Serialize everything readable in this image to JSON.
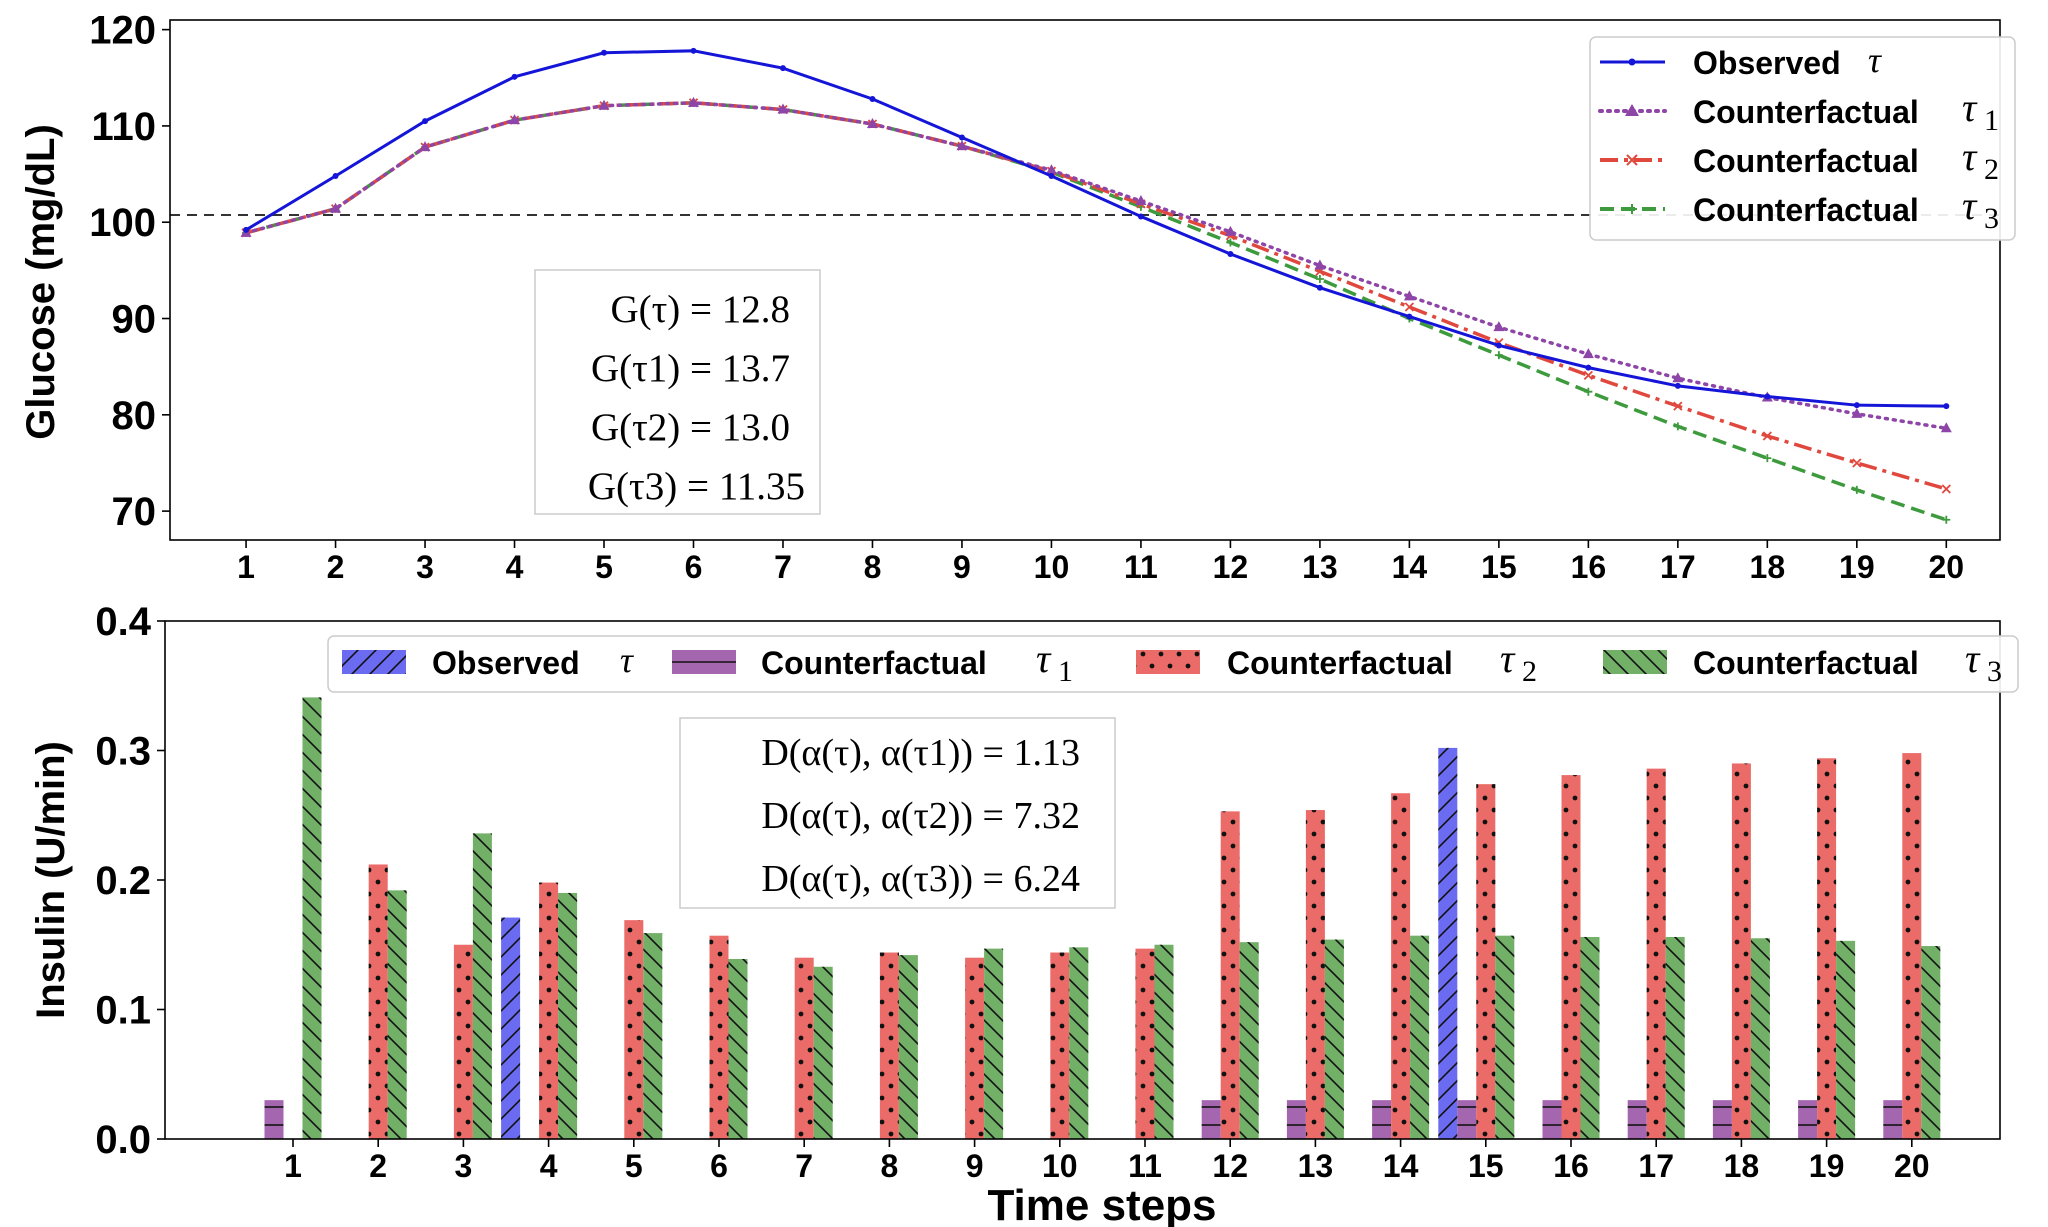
{
  "chart_data": [
    {
      "type": "line",
      "ylabel": "Glucose (mg/dL)",
      "xlabel": "",
      "x": [
        1,
        2,
        3,
        4,
        5,
        6,
        7,
        8,
        9,
        10,
        11,
        12,
        13,
        14,
        15,
        16,
        17,
        18,
        19,
        20
      ],
      "ylim": [
        67,
        121
      ],
      "xlim": [
        0.15,
        20.6
      ],
      "yticks": [
        70,
        80,
        90,
        100,
        110,
        120
      ],
      "reference_line": 100,
      "series": [
        {
          "name": "Observed",
          "tau": "τ",
          "color": "#1515d8",
          "style": "solid",
          "values": [
            99.2,
            104.8,
            110.5,
            115.1,
            117.6,
            117.8,
            116.0,
            112.8,
            108.8,
            104.8,
            100.6,
            96.7,
            93.2,
            90.2,
            87.2,
            84.9,
            83.0,
            81.9,
            81.0,
            80.9
          ]
        },
        {
          "name": "Counterfactual",
          "tau": "τ",
          "sub": "1",
          "color": "#8e45a8",
          "style": "dotted",
          "values": [
            98.9,
            101.4,
            107.8,
            110.6,
            112.1,
            112.4,
            111.7,
            110.2,
            107.9,
            105.4,
            102.2,
            99.0,
            95.5,
            92.3,
            89.1,
            86.3,
            83.8,
            81.8,
            80.1,
            78.6
          ]
        },
        {
          "name": "Counterfactual",
          "tau": "τ",
          "sub": "2",
          "color": "#e0483e",
          "style": "dashdot",
          "values": [
            98.9,
            101.4,
            107.8,
            110.6,
            112.1,
            112.4,
            111.7,
            110.2,
            107.9,
            105.3,
            101.9,
            98.6,
            94.9,
            91.2,
            87.5,
            84.1,
            80.9,
            77.8,
            75.0,
            72.3
          ]
        },
        {
          "name": "Counterfactual",
          "tau": "τ",
          "sub": "3",
          "color": "#3d9a3d",
          "style": "dashed",
          "values": [
            98.9,
            101.4,
            107.8,
            110.6,
            112.1,
            112.4,
            111.7,
            110.2,
            107.9,
            105.2,
            101.6,
            97.9,
            94.1,
            90.0,
            86.2,
            82.4,
            78.8,
            75.5,
            72.2,
            69.1
          ]
        }
      ],
      "annotation": [
        "G(τ) = 12.8",
        "G(τ1) = 13.7",
        "G(τ2) = 13.0",
        "G(τ3) = 11.35"
      ]
    },
    {
      "type": "bar",
      "ylabel": "Insulin (U/min)",
      "xlabel": "Time steps",
      "categories": [
        "1",
        "2",
        "3",
        "4",
        "5",
        "6",
        "7",
        "8",
        "9",
        "10",
        "11",
        "12",
        "13",
        "14",
        "15",
        "16",
        "17",
        "18",
        "19",
        "20"
      ],
      "ylim": [
        0,
        0.4
      ],
      "yticks": [
        0.0,
        0.1,
        0.2,
        0.3,
        0.4
      ],
      "series": [
        {
          "name": "Observed",
          "tau": "τ",
          "color": "#6b6bf2",
          "hatch": "/",
          "values": [
            0,
            0,
            0,
            0.171,
            0,
            0,
            0,
            0,
            0,
            0,
            0,
            0,
            0,
            0,
            0.302,
            0,
            0,
            0,
            0,
            0
          ]
        },
        {
          "name": "Counterfactual",
          "tau": "τ",
          "sub": "1",
          "color": "#a566b0",
          "hatch": "-",
          "values": [
            0.03,
            0,
            0,
            0,
            0,
            0,
            0,
            0,
            0,
            0,
            0,
            0.03,
            0.03,
            0.03,
            0.03,
            0.03,
            0.03,
            0.03,
            0.03,
            0.03
          ]
        },
        {
          "name": "Counterfactual",
          "tau": "τ",
          "sub": "2",
          "color": "#ea6b68",
          "hatch": ".",
          "values": [
            0,
            0.212,
            0.15,
            0.198,
            0.169,
            0.157,
            0.14,
            0.144,
            0.14,
            0.144,
            0.147,
            0.253,
            0.254,
            0.267,
            0.274,
            0.281,
            0.286,
            0.29,
            0.294,
            0.298
          ]
        },
        {
          "name": "Counterfactual",
          "tau": "τ",
          "sub": "3",
          "color": "#72b068",
          "hatch": "\\",
          "values": [
            0.341,
            0.192,
            0.236,
            0.19,
            0.159,
            0.139,
            0.133,
            0.142,
            0.147,
            0.148,
            0.15,
            0.152,
            0.154,
            0.157,
            0.157,
            0.156,
            0.156,
            0.155,
            0.153,
            0.149
          ]
        }
      ],
      "annotation": [
        "D(α(τ), α(τ1)) = 1.13",
        "D(α(τ), α(τ2)) = 7.32",
        "D(α(τ), α(τ3)) = 6.24"
      ]
    }
  ]
}
